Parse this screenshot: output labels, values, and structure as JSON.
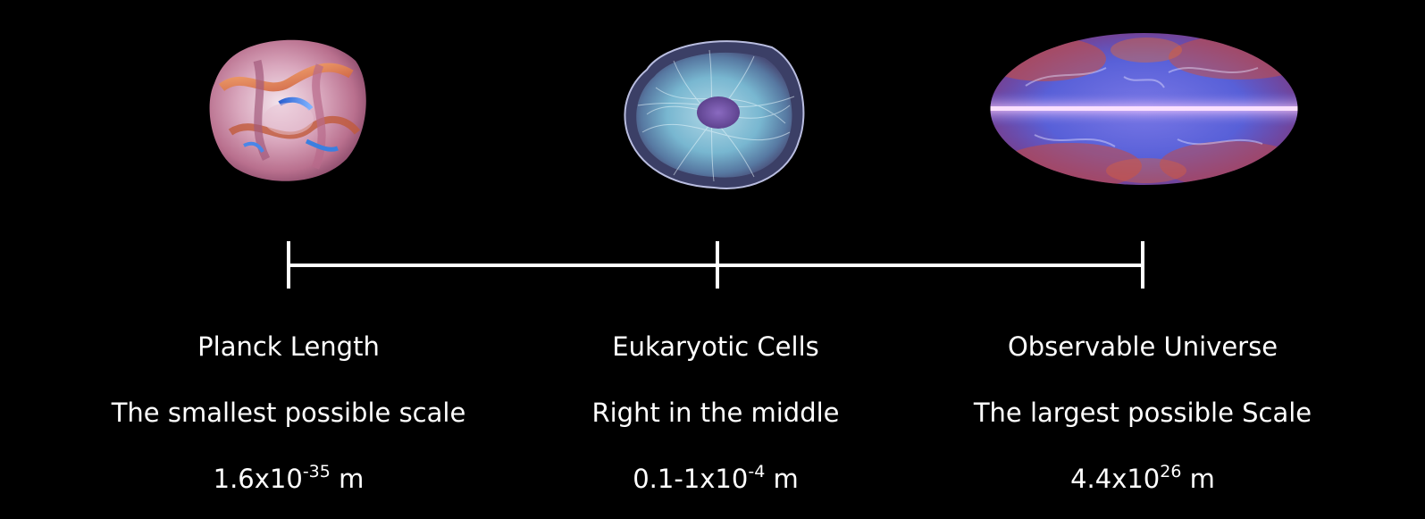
{
  "colors": {
    "background": "#000000",
    "foreground": "#ffffff",
    "planck_warm": "#e98a55",
    "planck_cool": "#3a7fe0",
    "cell_glow": "#9fd8ee",
    "cell_nucleus": "#6a4a9a",
    "universe_base": "#5860d8",
    "universe_hot": "#d0503a"
  },
  "icons": [
    "calabi-yau-manifold-image",
    "eukaryotic-cell-image",
    "cmb-sky-map-image"
  ],
  "scale_points": [
    {
      "name": "Planck Length",
      "description": "The smallest possible scale",
      "size_mantissa": "1.6x10",
      "size_exponent": "-35",
      "size_unit": "m"
    },
    {
      "name": "Eukaryotic Cells",
      "description": "Right in the middle",
      "size_mantissa": "0.1-1x10",
      "size_exponent": "-4",
      "size_unit": "m"
    },
    {
      "name": "Observable Universe",
      "description": "The largest possible Scale",
      "size_mantissa": "4.4x10",
      "size_exponent": "26",
      "size_unit": "m"
    }
  ]
}
